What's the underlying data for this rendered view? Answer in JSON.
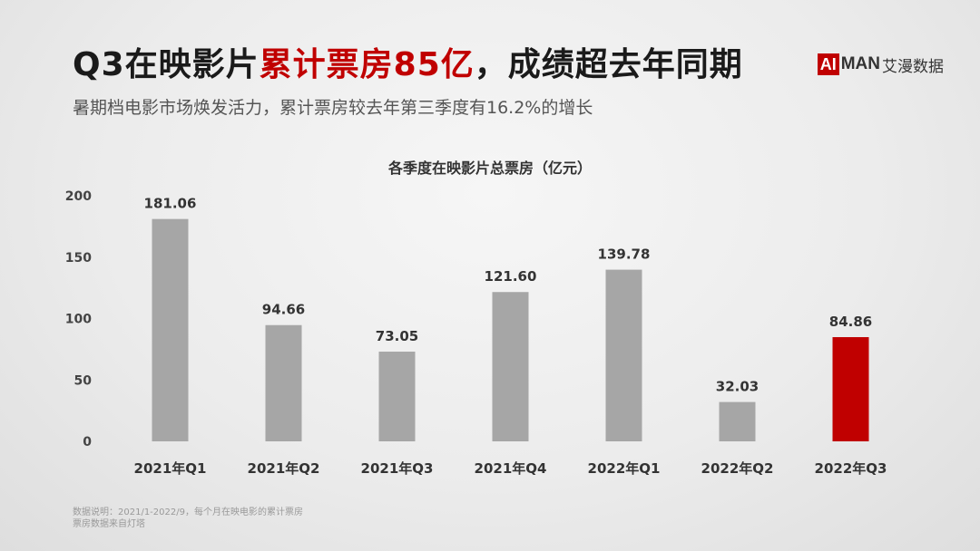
{
  "header": {
    "title_part1": "Q3在映影片",
    "title_highlight": "累计票房85亿",
    "title_part2": "，成绩超去年同期",
    "subtitle": "暑期档电影市场焕发活力，累计票房较去年第三季度有16.2%的增长"
  },
  "logo": {
    "mark": "AI",
    "text": "MAN",
    "cn": "艾漫数据"
  },
  "footnote": {
    "line1": "数据说明：2021/1-2022/9，每个月在映电影的累计票房",
    "line2": "票房数据来自灯塔"
  },
  "colors": {
    "bar": "#a6a6a6",
    "highlight": "#c00000"
  },
  "chart_data": {
    "type": "bar",
    "title": "各季度在映影片总票房（亿元）",
    "categories": [
      "2021年Q1",
      "2021年Q2",
      "2021年Q3",
      "2021年Q4",
      "2022年Q1",
      "2022年Q2",
      "2022年Q3"
    ],
    "values": [
      181.06,
      94.66,
      73.05,
      121.6,
      139.78,
      32.03,
      84.86
    ],
    "value_labels": [
      "181.06",
      "94.66",
      "73.05",
      "121.60",
      "139.78",
      "32.03",
      "84.86"
    ],
    "highlight_index": 6,
    "ylim": [
      0,
      200
    ],
    "yticks": [
      0,
      50,
      100,
      150,
      200
    ],
    "grid": false,
    "legend": "none"
  }
}
